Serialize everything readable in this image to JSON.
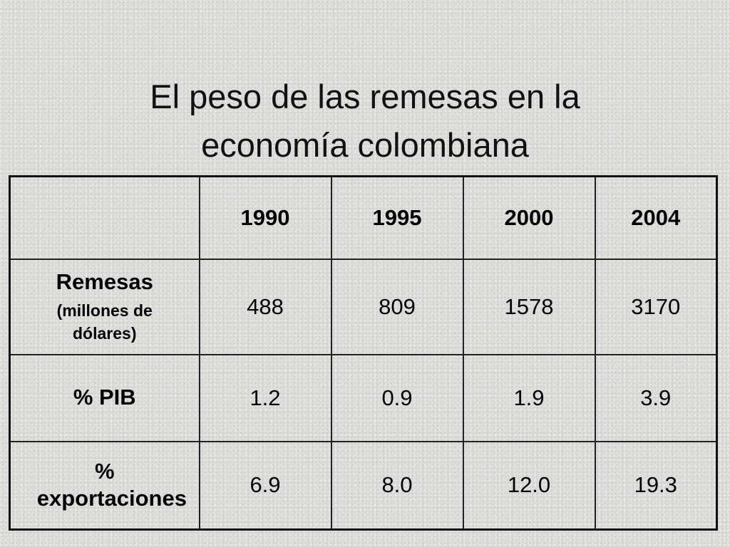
{
  "header": {
    "title_lines": [
      "El peso de las remesas en la",
      "economía colombiana"
    ]
  },
  "table": {
    "columns": [
      "1990",
      "1995",
      "2000",
      "2004"
    ],
    "rows": [
      {
        "label": "Remesas",
        "sublabel": "(millones de dólares)",
        "cells": [
          "488",
          "809",
          "1578",
          "3170"
        ]
      },
      {
        "label": "% PIB",
        "cells": [
          "1.2",
          "0.9",
          "1.9",
          "3.9"
        ]
      },
      {
        "label": "% exportaciones",
        "cells": [
          "6.9",
          "8.0",
          "12.0",
          "19.3"
        ]
      }
    ]
  }
}
